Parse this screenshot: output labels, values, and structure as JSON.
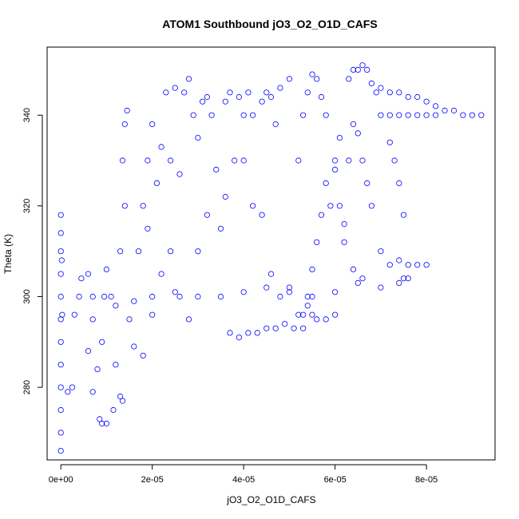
{
  "chart_data": {
    "type": "scatter",
    "title": "ATOM1 Southbound jO3_O2_O1D_CAFS",
    "xlabel": "jO3_O2_O1D_CAFS",
    "ylabel": "Theta (K)",
    "xlim": [
      -3e-06,
      9.5e-05
    ],
    "ylim": [
      264,
      355
    ],
    "x_ticks": [
      {
        "value": 0.0,
        "label": "0e+00"
      },
      {
        "value": 2e-05,
        "label": "2e-05"
      },
      {
        "value": 4e-05,
        "label": "4e-05"
      },
      {
        "value": 6e-05,
        "label": "6e-05"
      },
      {
        "value": 8e-05,
        "label": "8e-05"
      }
    ],
    "y_ticks": [
      {
        "value": 280,
        "label": "280"
      },
      {
        "value": 300,
        "label": "300"
      },
      {
        "value": 320,
        "label": "320"
      },
      {
        "value": 340,
        "label": "340"
      }
    ],
    "marker": "open-circle",
    "color": "#0000ff",
    "grid": false,
    "legend": "none",
    "series": [
      {
        "points": [
          [
            0.0,
            266
          ],
          [
            0.0,
            270
          ],
          [
            0.0,
            275
          ],
          [
            0.0,
            280
          ],
          [
            0.0,
            285
          ],
          [
            0.0,
            290
          ],
          [
            0.0,
            295
          ],
          [
            0.0,
            300
          ],
          [
            0.0,
            305
          ],
          [
            0.0,
            310
          ],
          [
            0.0,
            314
          ],
          [
            0.0,
            318
          ],
          [
            2e-07,
            308
          ],
          [
            3e-07,
            296
          ],
          [
            1.5e-06,
            279
          ],
          [
            2.5e-06,
            280
          ],
          [
            3e-06,
            296
          ],
          [
            4e-06,
            300
          ],
          [
            4.5e-06,
            304
          ],
          [
            6e-06,
            305
          ],
          [
            7e-06,
            300
          ],
          [
            7e-06,
            295
          ],
          [
            6e-06,
            288
          ],
          [
            8e-06,
            284
          ],
          [
            9e-06,
            290
          ],
          [
            9.5e-06,
            300
          ],
          [
            1e-05,
            306
          ],
          [
            1.1e-05,
            300
          ],
          [
            1.2e-05,
            285
          ],
          [
            1.3e-05,
            278
          ],
          [
            1.35e-05,
            277
          ],
          [
            1.15e-05,
            275
          ],
          [
            1e-05,
            272
          ],
          [
            9e-06,
            272
          ],
          [
            8.5e-06,
            273
          ],
          [
            7e-06,
            279
          ],
          [
            1.4e-05,
            320
          ],
          [
            1.35e-05,
            330
          ],
          [
            1.4e-05,
            338
          ],
          [
            1.45e-05,
            341
          ],
          [
            1.3e-05,
            310
          ],
          [
            1.2e-05,
            298
          ],
          [
            1.5e-05,
            295
          ],
          [
            1.6e-05,
            289
          ],
          [
            1.8e-05,
            287
          ],
          [
            2e-05,
            296
          ],
          [
            2.2e-05,
            305
          ],
          [
            1.9e-05,
            315
          ],
          [
            2.1e-05,
            325
          ],
          [
            2.2e-05,
            333
          ],
          [
            2e-05,
            338
          ],
          [
            2.4e-05,
            330
          ],
          [
            2.6e-05,
            327
          ],
          [
            2.7e-05,
            345
          ],
          [
            2.8e-05,
            348
          ],
          [
            2.9e-05,
            340
          ],
          [
            3e-05,
            335
          ],
          [
            3.1e-05,
            343
          ],
          [
            3.2e-05,
            344
          ],
          [
            3.3e-05,
            340
          ],
          [
            2.4e-05,
            310
          ],
          [
            2.6e-05,
            300
          ],
          [
            2.8e-05,
            295
          ],
          [
            3e-05,
            310
          ],
          [
            3.2e-05,
            318
          ],
          [
            3.4e-05,
            328
          ],
          [
            3.6e-05,
            343
          ],
          [
            3.7e-05,
            345
          ],
          [
            3.9e-05,
            344
          ],
          [
            4e-05,
            340
          ],
          [
            4.1e-05,
            345
          ],
          [
            4.2e-05,
            340
          ],
          [
            4.4e-05,
            343
          ],
          [
            4.5e-05,
            345
          ],
          [
            4.6e-05,
            344
          ],
          [
            4.7e-05,
            338
          ],
          [
            4.8e-05,
            346
          ],
          [
            5e-05,
            348
          ],
          [
            3.5e-05,
            315
          ],
          [
            3.6e-05,
            322
          ],
          [
            3.8e-05,
            330
          ],
          [
            4e-05,
            330
          ],
          [
            4.2e-05,
            320
          ],
          [
            4.4e-05,
            318
          ],
          [
            4.6e-05,
            305
          ],
          [
            4.8e-05,
            300
          ],
          [
            5e-05,
            302
          ],
          [
            5.2e-05,
            296
          ],
          [
            5.4e-05,
            298
          ],
          [
            5.6e-05,
            295
          ],
          [
            3.7e-05,
            292
          ],
          [
            3.9e-05,
            291
          ],
          [
            4.1e-05,
            292
          ],
          [
            4.3e-05,
            292
          ],
          [
            4.5e-05,
            293
          ],
          [
            4.7e-05,
            293
          ],
          [
            4.9e-05,
            294
          ],
          [
            5.1e-05,
            293
          ],
          [
            5.3e-05,
            293
          ],
          [
            5.5e-05,
            296
          ],
          [
            5.8e-05,
            295
          ],
          [
            6e-05,
            296
          ],
          [
            5.2e-05,
            330
          ],
          [
            5.3e-05,
            340
          ],
          [
            5.4e-05,
            345
          ],
          [
            5.5e-05,
            349
          ],
          [
            5.6e-05,
            348
          ],
          [
            5.7e-05,
            344
          ],
          [
            5.8e-05,
            340
          ],
          [
            6e-05,
            330
          ],
          [
            6.1e-05,
            320
          ],
          [
            6.2e-05,
            312
          ],
          [
            6.4e-05,
            306
          ],
          [
            6.6e-05,
            304
          ],
          [
            6.3e-05,
            348
          ],
          [
            6.4e-05,
            350
          ],
          [
            6.5e-05,
            350
          ],
          [
            6.6e-05,
            351
          ],
          [
            6.7e-05,
            350
          ],
          [
            6.8e-05,
            347
          ],
          [
            6.9e-05,
            345
          ],
          [
            7e-05,
            340
          ],
          [
            7.2e-05,
            334
          ],
          [
            7.3e-05,
            330
          ],
          [
            7.4e-05,
            325
          ],
          [
            7.5e-05,
            318
          ],
          [
            6.5e-05,
            336
          ],
          [
            6.6e-05,
            330
          ],
          [
            6.7e-05,
            325
          ],
          [
            6.8e-05,
            320
          ],
          [
            7e-05,
            310
          ],
          [
            7.2e-05,
            307
          ],
          [
            7.4e-05,
            308
          ],
          [
            7.6e-05,
            307
          ],
          [
            7.8e-05,
            307
          ],
          [
            8e-05,
            307
          ],
          [
            7.6e-05,
            304
          ],
          [
            7.4e-05,
            303
          ],
          [
            7e-05,
            346
          ],
          [
            7.2e-05,
            345
          ],
          [
            7.4e-05,
            345
          ],
          [
            7.6e-05,
            344
          ],
          [
            7.8e-05,
            344
          ],
          [
            8e-05,
            343
          ],
          [
            8.2e-05,
            342
          ],
          [
            8.4e-05,
            341
          ],
          [
            8.6e-05,
            341
          ],
          [
            8.8e-05,
            340
          ],
          [
            9e-05,
            340
          ],
          [
            9.2e-05,
            340
          ],
          [
            7.2e-05,
            340
          ],
          [
            7.4e-05,
            340
          ],
          [
            7.6e-05,
            340
          ],
          [
            7.8e-05,
            340
          ],
          [
            8e-05,
            340
          ],
          [
            8.2e-05,
            340
          ],
          [
            5.8e-05,
            325
          ],
          [
            5.7e-05,
            318
          ],
          [
            5.6e-05,
            312
          ],
          [
            5.5e-05,
            306
          ],
          [
            5.4e-05,
            300
          ],
          [
            5.3e-05,
            296
          ],
          [
            6.1e-05,
            335
          ],
          [
            6e-05,
            328
          ],
          [
            5.9e-05,
            320
          ],
          [
            6.2e-05,
            316
          ],
          [
            6.3e-05,
            330
          ],
          [
            6.4e-05,
            338
          ],
          [
            2e-05,
            300
          ],
          [
            2.5e-05,
            301
          ],
          [
            3e-05,
            300
          ],
          [
            3.5e-05,
            300
          ],
          [
            4e-05,
            301
          ],
          [
            4.5e-05,
            302
          ],
          [
            5e-05,
            301
          ],
          [
            5.5e-05,
            300
          ],
          [
            6e-05,
            301
          ],
          [
            6.5e-05,
            303
          ],
          [
            7e-05,
            302
          ],
          [
            7.5e-05,
            304
          ],
          [
            1.6e-05,
            299
          ],
          [
            1.7e-05,
            310
          ],
          [
            1.8e-05,
            320
          ],
          [
            1.9e-05,
            330
          ],
          [
            2.3e-05,
            345
          ],
          [
            2.5e-05,
            346
          ]
        ]
      }
    ]
  }
}
